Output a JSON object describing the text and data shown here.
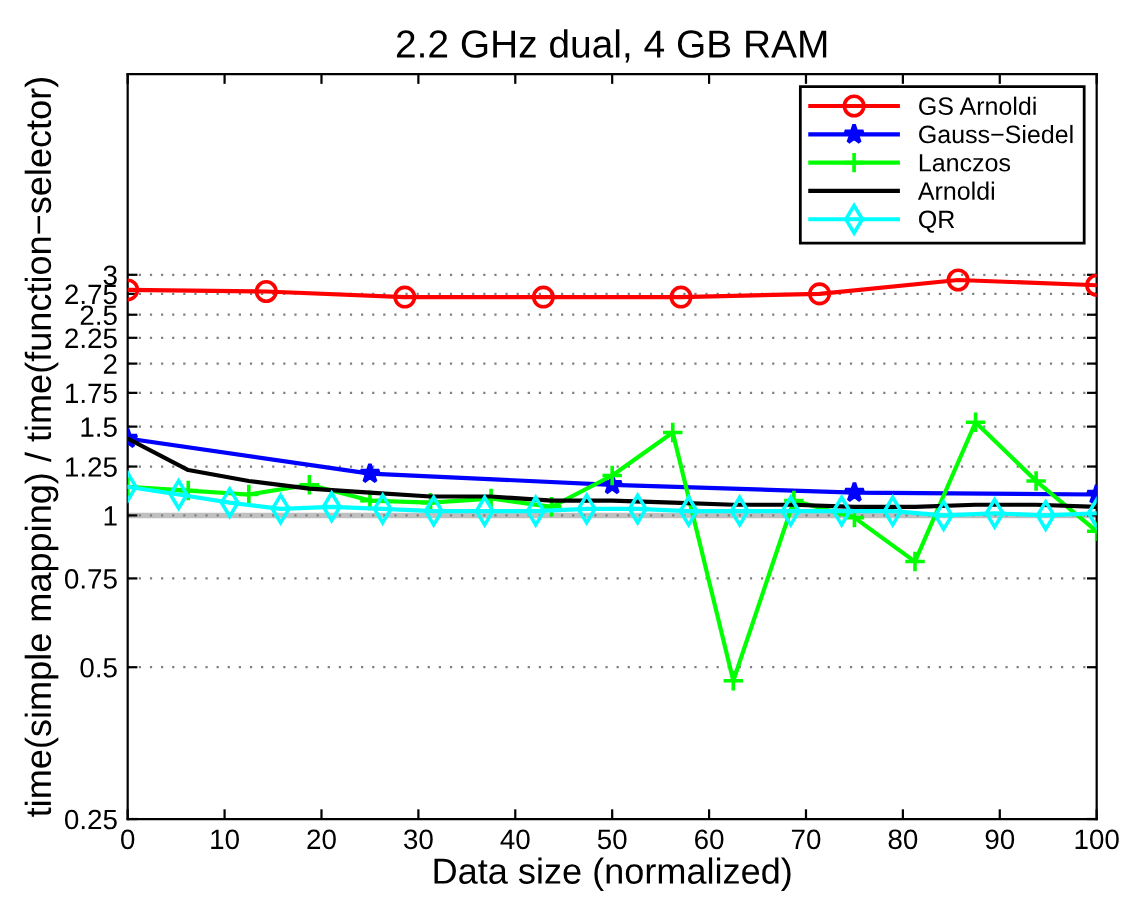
{
  "chart_data": {
    "type": "line",
    "title": "2.2 GHz dual, 4 GB RAM",
    "xlabel": "Data size (normalized)",
    "ylabel": "time(simple mapping) / time(function−selector)",
    "log": "y",
    "xlim": [
      0,
      100
    ],
    "xticks": [
      0,
      10,
      20,
      30,
      40,
      50,
      60,
      70,
      80,
      90,
      100
    ],
    "ylim": [
      0.25,
      7.5
    ],
    "yticks": [
      0.25,
      0.5,
      0.75,
      1,
      1.25,
      1.5,
      1.75,
      2,
      2.25,
      2.5,
      2.75,
      3
    ],
    "grid": "y",
    "legend": "top right",
    "ref_lines": [
      {
        "axis": "y",
        "value": 1,
        "color": "#c0c0c0"
      }
    ],
    "series": [
      {
        "name": "GS Arnoldi",
        "color": "#ff0000",
        "marker": "circle",
        "x": [
          0,
          14.3,
          28.6,
          42.9,
          57.1,
          71.4,
          85.7,
          100
        ],
        "values": [
          2.8,
          2.78,
          2.71,
          2.71,
          2.71,
          2.75,
          2.93,
          2.86
        ]
      },
      {
        "name": "Gauss−Siedel",
        "color": "#0000ff",
        "marker": "star",
        "x": [
          0,
          25,
          50,
          75,
          100
        ],
        "values": [
          1.42,
          1.21,
          1.15,
          1.11,
          1.1
        ]
      },
      {
        "name": "Lanczos",
        "color": "#00ff00",
        "marker": "cross",
        "x": [
          0,
          6.25,
          12.5,
          18.75,
          25,
          31.25,
          37.5,
          43.75,
          50,
          56.25,
          62.5,
          68.75,
          75,
          81.25,
          87.5,
          93.75,
          100
        ],
        "values": [
          1.14,
          1.12,
          1.1,
          1.15,
          1.07,
          1.06,
          1.08,
          1.04,
          1.2,
          1.46,
          0.47,
          1.07,
          0.99,
          0.81,
          1.53,
          1.17,
          0.93
        ]
      },
      {
        "name": "Arnoldi",
        "color": "#000000",
        "marker": "none",
        "x": [
          0,
          6.25,
          12.5,
          18.75,
          25,
          31.25,
          37.5,
          43.75,
          50,
          56.25,
          62.5,
          68.75,
          75,
          81.25,
          87.5,
          93.75,
          100
        ],
        "values": [
          1.42,
          1.23,
          1.17,
          1.13,
          1.11,
          1.09,
          1.09,
          1.07,
          1.07,
          1.06,
          1.05,
          1.05,
          1.04,
          1.04,
          1.05,
          1.05,
          1.04
        ]
      },
      {
        "name": "QR",
        "color": "#00ffff",
        "marker": "diamond",
        "x": [
          0,
          5.26,
          10.53,
          15.79,
          21.05,
          26.32,
          31.58,
          36.84,
          42.11,
          47.37,
          52.63,
          57.89,
          63.16,
          68.42,
          73.68,
          78.95,
          84.21,
          89.47,
          94.74,
          100
        ],
        "values": [
          1.14,
          1.1,
          1.06,
          1.03,
          1.04,
          1.03,
          1.02,
          1.02,
          1.02,
          1.03,
          1.03,
          1.02,
          1.02,
          1.02,
          1.02,
          1.02,
          1.0,
          1.01,
          1.0,
          1.01
        ]
      }
    ]
  }
}
